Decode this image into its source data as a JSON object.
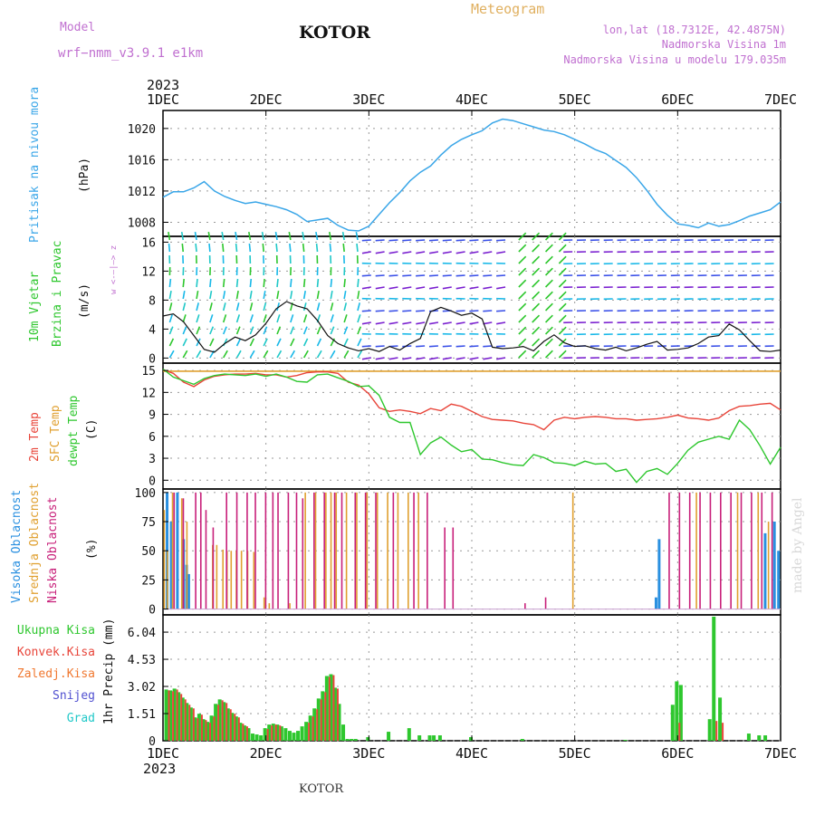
{
  "header": {
    "model_label": "Model",
    "model_name": "wrf−nmm_v3.9.1  e1km",
    "station": "KOTOR",
    "product": "Meteogram",
    "lonlat": "lon,lat (18.7312E, 42.4875N)",
    "altitude": "Nadmorska Visina 1m",
    "model_altitude": "Nadmorska Visina u modelu 179.035m",
    "watermark": "made by Angel",
    "footer_station": "KOTOR",
    "year_top": "2023",
    "year_bottom": "2023"
  },
  "colors": {
    "pressure": "#3aa6e8",
    "temp2m": "#e8453a",
    "sfc": "#e0a030",
    "dewpt": "#2ec72e",
    "high_cloud": "#2a90e0",
    "mid_cloud": "#e0a030",
    "low_cloud": "#c8207a",
    "total_precip": "#2ec72e",
    "conv_precip": "#e8453a",
    "frozen": "#f07830",
    "snow": "#5050d0",
    "hail": "#20c8c8",
    "model": "#c070d0",
    "header_grey": "#e0b060"
  },
  "x_ticks": [
    "1DEC",
    "2DEC",
    "3DEC",
    "4DEC",
    "5DEC",
    "6DEC",
    "7DEC"
  ],
  "panels": {
    "pressure": {
      "label": "Pritisak na nivou mora",
      "unit": "(hPa)",
      "ticks": [
        "1008",
        "1012",
        "1016",
        "1020"
      ]
    },
    "wind": {
      "label1": "10m Vjetar",
      "label2": "Brzina i Pravac",
      "unit": "(m/s)",
      "ticks": [
        "0",
        "4",
        "8",
        "12",
        "16"
      ],
      "compass": "w  <-—|—>  z"
    },
    "temp": {
      "label1": "2m Temp",
      "label2": "SFC Temp",
      "label3": "dewpt Temp",
      "unit": "(C)",
      "ticks": [
        "0",
        "3",
        "6",
        "9",
        "12",
        "15"
      ]
    },
    "cloud": {
      "label1": "Visoka Oblacnost",
      "label2": "Srednja Oblacnost",
      "label3": "Niska Oblacnost",
      "unit": "(%)",
      "ticks": [
        "0",
        "25",
        "50",
        "75",
        "100"
      ]
    },
    "precip": {
      "legend": [
        "Ukupna Kisa",
        "Konvek.Kisa",
        "Zaledj.Kisa",
        "Snijeg",
        "Grad"
      ],
      "unit": "1hr Precip (mm)",
      "ticks": [
        "0",
        "1.51",
        "3.02",
        "4.53",
        "6.04"
      ]
    }
  },
  "chart_data": [
    {
      "type": "line",
      "title": "",
      "ylabel": "Pritisak na nivou mora (hPa)",
      "ylim": [
        1006.2,
        1022.3
      ],
      "x_unit": "days since 1 DEC 2023 00UTC",
      "series": [
        {
          "name": "Pritisak na nivou mora",
          "x": [
            0,
            0.1,
            0.2,
            0.3,
            0.4,
            0.5,
            0.6,
            0.7,
            0.8,
            0.9,
            1.0,
            1.1,
            1.2,
            1.3,
            1.4,
            1.5,
            1.6,
            1.7,
            1.8,
            1.9,
            2.0,
            2.1,
            2.2,
            2.3,
            2.4,
            2.5,
            2.6,
            2.7,
            2.8,
            2.9,
            3.0,
            3.1,
            3.2,
            3.3,
            3.4,
            3.5,
            3.6,
            3.7,
            3.8,
            3.9,
            4.0,
            4.1,
            4.2,
            4.3,
            4.4,
            4.5,
            4.6,
            4.7,
            4.8,
            4.9,
            5.0,
            5.1,
            5.2,
            5.3,
            5.4,
            5.5,
            5.6,
            5.7,
            5.8,
            5.9,
            6.0
          ],
          "y": [
            1011.2,
            1011.9,
            1011.9,
            1012.4,
            1013.2,
            1012.0,
            1011.3,
            1010.8,
            1010.4,
            1010.6,
            1010.3,
            1010.0,
            1009.6,
            1009.0,
            1008.1,
            1008.3,
            1008.5,
            1007.6,
            1007.0,
            1006.9,
            1007.5,
            1009.0,
            1010.5,
            1011.8,
            1013.3,
            1014.4,
            1015.2,
            1016.6,
            1017.8,
            1018.6,
            1019.2,
            1019.7,
            1020.7,
            1021.2,
            1021.0,
            1020.6,
            1020.2,
            1019.8,
            1019.6,
            1019.2,
            1018.6,
            1018.0,
            1017.3,
            1016.8,
            1015.9,
            1015.0,
            1013.7,
            1012.1,
            1010.3,
            1008.9,
            1007.8,
            1007.6,
            1007.3,
            1007.9,
            1007.5,
            1007.7,
            1008.2,
            1008.8,
            1009.2,
            1009.6,
            1010.6
          ]
        }
      ]
    },
    {
      "type": "line",
      "title": "",
      "ylabel": "10m Vjetar Brzina i Pravac (m/s)",
      "ylim": [
        -0.7,
        16.8
      ],
      "x_unit": "days since 1 DEC 2023 00UTC",
      "series": [
        {
          "name": "10m Vjetar",
          "x": [
            0,
            0.1,
            0.2,
            0.3,
            0.4,
            0.5,
            0.6,
            0.7,
            0.8,
            0.9,
            1.0,
            1.1,
            1.2,
            1.3,
            1.4,
            1.5,
            1.6,
            1.7,
            1.8,
            1.9,
            2.0,
            2.1,
            2.2,
            2.3,
            2.4,
            2.5,
            2.6,
            2.7,
            2.8,
            2.9,
            3.0,
            3.1,
            3.2,
            3.3,
            3.4,
            3.5,
            3.6,
            3.7,
            3.8,
            3.9,
            4.0,
            4.1,
            4.2,
            4.3,
            4.4,
            4.5,
            4.6,
            4.7,
            4.8,
            4.9,
            5.0,
            5.1,
            5.2,
            5.3,
            5.4,
            5.5,
            5.6,
            5.7,
            5.8,
            5.9,
            6.0
          ],
          "y": [
            5.8,
            6.1,
            5.0,
            3.1,
            1.2,
            0.8,
            2.0,
            2.9,
            2.4,
            3.2,
            4.8,
            6.8,
            7.8,
            7.2,
            6.8,
            5.2,
            3.1,
            2.0,
            1.4,
            1.0,
            1.3,
            0.9,
            1.6,
            1.1,
            2.0,
            2.7,
            6.4,
            7.0,
            6.5,
            5.9,
            6.2,
            5.4,
            1.5,
            1.3,
            1.4,
            1.6,
            1.0,
            2.3,
            3.2,
            2.1,
            1.6,
            1.7,
            1.3,
            1.1,
            1.5,
            1.0,
            1.4,
            1.9,
            2.3,
            1.1,
            1.2,
            1.4,
            2.0,
            2.9,
            3.1,
            4.7,
            3.9,
            2.4,
            1.0,
            0.9,
            1.1
          ]
        }
      ]
    },
    {
      "type": "line",
      "title": "",
      "ylabel": "Temp (C)",
      "ylim": [
        -1.2,
        16.0
      ],
      "x_unit": "days since 1 DEC 2023 00UTC",
      "series": [
        {
          "name": "2m Temp",
          "x": [
            0,
            0.1,
            0.2,
            0.3,
            0.4,
            0.5,
            0.6,
            0.7,
            0.8,
            0.9,
            1.0,
            1.1,
            1.2,
            1.3,
            1.4,
            1.5,
            1.6,
            1.7,
            1.8,
            1.9,
            2.0,
            2.1,
            2.2,
            2.3,
            2.4,
            2.5,
            2.6,
            2.7,
            2.8,
            2.9,
            3.0,
            3.1,
            3.2,
            3.3,
            3.4,
            3.5,
            3.6,
            3.7,
            3.8,
            3.9,
            4.0,
            4.1,
            4.2,
            4.3,
            4.4,
            4.5,
            4.6,
            4.7,
            4.8,
            4.9,
            5.0,
            5.1,
            5.2,
            5.3,
            5.4,
            5.5,
            5.6,
            5.7,
            5.8,
            5.9,
            6.0
          ],
          "y": [
            15.1,
            14.6,
            13.4,
            12.8,
            13.7,
            14.2,
            14.4,
            14.5,
            14.5,
            14.6,
            14.4,
            14.4,
            14.1,
            14.3,
            14.7,
            14.8,
            14.8,
            14.6,
            13.4,
            13.0,
            11.8,
            9.9,
            9.4,
            9.6,
            9.4,
            9.1,
            9.8,
            9.5,
            10.4,
            10.1,
            9.4,
            8.7,
            8.3,
            8.2,
            8.1,
            7.8,
            7.6,
            6.9,
            8.2,
            8.6,
            8.4,
            8.6,
            8.7,
            8.6,
            8.4,
            8.4,
            8.2,
            8.3,
            8.4,
            8.6,
            8.9,
            8.5,
            8.4,
            8.2,
            8.5,
            9.5,
            10.1,
            10.2,
            10.4,
            10.5,
            9.6
          ]
        },
        {
          "name": "SFC Temp",
          "x": [
            0,
            6
          ],
          "y": [
            14.9,
            14.9
          ]
        },
        {
          "name": "dewpt Temp",
          "x": [
            0,
            0.1,
            0.2,
            0.3,
            0.4,
            0.5,
            0.6,
            0.7,
            0.8,
            0.9,
            1.0,
            1.1,
            1.2,
            1.3,
            1.4,
            1.5,
            1.6,
            1.7,
            1.8,
            1.9,
            2.0,
            2.1,
            2.2,
            2.3,
            2.4,
            2.5,
            2.6,
            2.7,
            2.8,
            2.9,
            3.0,
            3.1,
            3.2,
            3.3,
            3.4,
            3.5,
            3.6,
            3.7,
            3.8,
            3.9,
            4.0,
            4.1,
            4.2,
            4.3,
            4.4,
            4.5,
            4.6,
            4.7,
            4.8,
            4.9,
            5.0,
            5.1,
            5.2,
            5.3,
            5.4,
            5.5,
            5.6,
            5.7,
            5.8,
            5.9,
            6.0
          ],
          "y": [
            15.2,
            14.1,
            13.6,
            13.1,
            13.9,
            14.3,
            14.5,
            14.4,
            14.3,
            14.5,
            14.2,
            14.5,
            14.1,
            13.5,
            13.4,
            14.4,
            14.5,
            14.0,
            13.5,
            12.8,
            12.9,
            11.6,
            8.6,
            7.9,
            7.9,
            3.5,
            5.1,
            5.9,
            4.8,
            3.9,
            4.2,
            2.9,
            2.8,
            2.4,
            2.1,
            2.0,
            3.5,
            3.1,
            2.4,
            2.3,
            2.0,
            2.6,
            2.2,
            2.3,
            1.2,
            1.5,
            -0.3,
            1.2,
            1.6,
            0.8,
            2.3,
            4.1,
            5.2,
            5.6,
            6.0,
            5.6,
            8.2,
            6.9,
            4.7,
            2.2,
            4.5
          ]
        }
      ]
    },
    {
      "type": "bar",
      "title": "",
      "ylabel": "Oblacnost (%)",
      "ylim": [
        -5,
        103
      ],
      "x_unit": "days since 1 DEC 2023 00UTC",
      "series": [
        {
          "name": "Visoka Oblacnost",
          "x": [
            0.04,
            0.08,
            0.14,
            0.2,
            0.23,
            0.25,
            4.79,
            4.82,
            5.85,
            5.94,
            5.98
          ],
          "y": [
            100,
            75,
            100,
            60,
            38,
            30,
            10,
            60,
            65,
            75,
            50
          ]
        },
        {
          "name": "Srednja Oblacnost",
          "x": [
            0.03,
            0.06,
            0.11,
            0.2,
            0.25,
            0.5,
            0.54,
            0.6,
            0.64,
            0.68,
            0.73,
            0.78,
            0.84,
            0.9,
            1.0,
            1.05,
            1.25,
            1.4,
            1.5,
            1.6,
            1.65,
            1.7,
            1.8,
            1.9,
            2.0,
            2.1,
            2.2,
            2.3,
            2.4,
            2.5,
            4.0,
            5.2,
            5.6,
            5.8,
            5.9
          ],
          "y": [
            85,
            50,
            100,
            95,
            75,
            55,
            55,
            51,
            50,
            50,
            50,
            50,
            50,
            49,
            10,
            5,
            5,
            100,
            100,
            100,
            100,
            100,
            100,
            100,
            100,
            100,
            100,
            100,
            100,
            100,
            100,
            100,
            100,
            100,
            75
          ]
        },
        {
          "name": "Niska Oblacnost",
          "x": [
            0.09,
            0.18,
            0.3,
            0.35,
            0.4,
            0.47,
            0.6,
            0.7,
            0.8,
            0.88,
            0.98,
            1.05,
            1.1,
            1.2,
            1.28,
            1.34,
            1.45,
            1.55,
            1.65,
            1.72,
            1.85,
            1.95,
            2.05,
            2.22,
            2.42,
            2.55,
            2.72,
            2.8,
            3.5,
            3.7,
            4.9,
            5.0,
            5.1,
            5.2,
            5.3,
            5.4,
            5.5,
            5.6,
            5.7,
            5.8,
            5.9
          ],
          "y": [
            100,
            95,
            100,
            100,
            85,
            70,
            100,
            100,
            100,
            100,
            100,
            100,
            100,
            100,
            100,
            95,
            100,
            100,
            100,
            100,
            100,
            100,
            100,
            100,
            100,
            100,
            70,
            70,
            5,
            10,
            100,
            100,
            100,
            100,
            100,
            100,
            100,
            100,
            100,
            100,
            100
          ]
        }
      ]
    },
    {
      "type": "bar",
      "title": "",
      "ylabel": "1hr Precip (mm)",
      "ylim": [
        0,
        7.0
      ],
      "x_unit": "days since 1 DEC 2023 00UTC",
      "series": [
        {
          "name": "Ukupna Kisa",
          "x": [
            0.04,
            0.08,
            0.12,
            0.16,
            0.2,
            0.24,
            0.28,
            0.32,
            0.36,
            0.4,
            0.44,
            0.48,
            0.52,
            0.56,
            0.6,
            0.64,
            0.68,
            0.72,
            0.76,
            0.8,
            0.84,
            0.88,
            0.92,
            0.96,
            1.0,
            1.04,
            1.08,
            1.12,
            1.16,
            1.2,
            1.24,
            1.28,
            1.32,
            1.36,
            1.4,
            1.44,
            1.48,
            1.52,
            1.56,
            1.6,
            1.64,
            1.68,
            1.72,
            1.76,
            1.8,
            1.84,
            1.88,
            2.0,
            2.2,
            2.4,
            2.5,
            2.6,
            2.64,
            2.7,
            3.0,
            3.5,
            4.5,
            4.96,
            5.0,
            5.04,
            5.32,
            5.36,
            5.42,
            5.7,
            5.8,
            5.86
          ],
          "y": [
            2.85,
            2.8,
            2.9,
            2.7,
            2.4,
            2.1,
            1.85,
            1.3,
            1.5,
            1.2,
            1.05,
            1.4,
            2.05,
            2.3,
            2.15,
            1.8,
            1.55,
            1.35,
            1.0,
            0.85,
            0.7,
            0.4,
            0.35,
            0.3,
            0.7,
            0.9,
            0.95,
            0.9,
            0.8,
            0.7,
            0.55,
            0.45,
            0.55,
            0.8,
            1.05,
            1.4,
            1.8,
            2.35,
            2.75,
            3.6,
            3.7,
            2.95,
            2.05,
            0.9,
            0.1,
            0.1,
            0.1,
            0.2,
            0.5,
            0.7,
            0.3,
            0.3,
            0.3,
            0.3,
            0.2,
            0.1,
            0.05,
            2.0,
            3.3,
            3.1,
            1.2,
            6.9,
            2.4,
            0.4,
            0.3,
            0.3
          ]
        },
        {
          "name": "Konvek.Kisa",
          "x": [
            0.04,
            0.08,
            0.12,
            0.16,
            0.2,
            0.24,
            0.28,
            0.32,
            0.36,
            0.4,
            0.44,
            0.48,
            0.52,
            0.56,
            0.6,
            0.64,
            0.68,
            0.72,
            0.76,
            0.8,
            1.0,
            1.04,
            1.08,
            1.12,
            1.4,
            1.44,
            1.48,
            1.52,
            1.56,
            1.6,
            1.64,
            1.68,
            5.0,
            5.36,
            5.42
          ],
          "y": [
            2.8,
            2.75,
            2.85,
            2.6,
            2.3,
            2.0,
            1.8,
            1.25,
            1.45,
            1.15,
            1.0,
            1.35,
            2.0,
            2.25,
            2.1,
            1.75,
            1.5,
            1.3,
            0.95,
            0.8,
            0.65,
            0.85,
            0.9,
            0.85,
            1.0,
            1.35,
            1.75,
            2.3,
            2.7,
            3.55,
            3.65,
            2.9,
            1.0,
            1.1,
            1.0
          ]
        },
        {
          "name": "Zaledj.Kisa",
          "x": [],
          "y": []
        },
        {
          "name": "Snijeg",
          "x": [],
          "y": []
        },
        {
          "name": "Grad",
          "x": [],
          "y": []
        }
      ]
    }
  ]
}
